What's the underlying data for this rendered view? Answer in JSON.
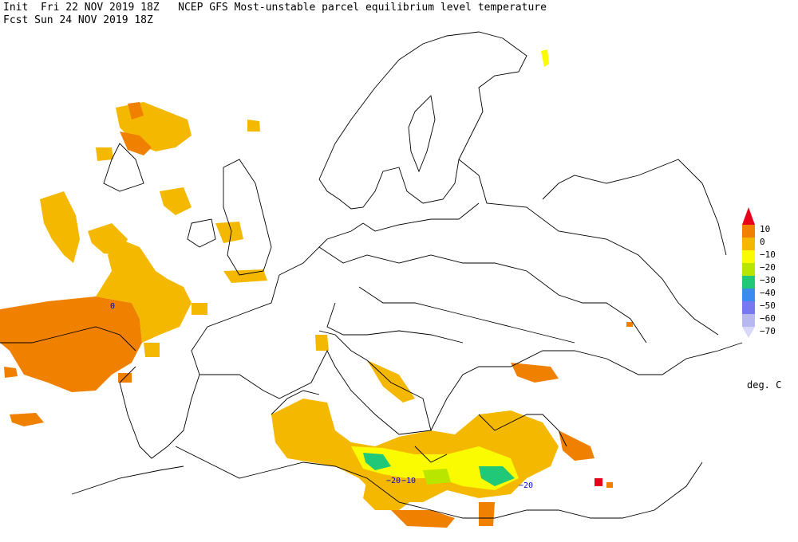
{
  "header": {
    "line1": "Init  Fri 22 NOV 2019 18Z   NCEP GFS Most-unstable parcel equilibrium level temperature",
    "line2": "Fcst Sun 24 NOV 2019 18Z"
  },
  "legend": {
    "levels": [
      {
        "label": "10",
        "color": "#e8001a"
      },
      {
        "label": "0",
        "color": "#f08000"
      },
      {
        "label": "−10",
        "color": "#f5b800"
      },
      {
        "label": "−20",
        "color": "#fafa00"
      },
      {
        "label": "−30",
        "color": "#b8e600"
      },
      {
        "label": "−40",
        "color": "#20c878"
      },
      {
        "label": "−50",
        "color": "#3c8cf0"
      },
      {
        "label": "−60",
        "color": "#7878f0"
      },
      {
        "label": "−70",
        "color": "#b8b8f0"
      }
    ],
    "bottom_color": "#d8d8f8",
    "units": "deg. C"
  },
  "contour_labels": [
    {
      "text": "0"
    },
    {
      "text": "−20"
    },
    {
      "text": "−10"
    },
    {
      "text": "−20"
    }
  ]
}
